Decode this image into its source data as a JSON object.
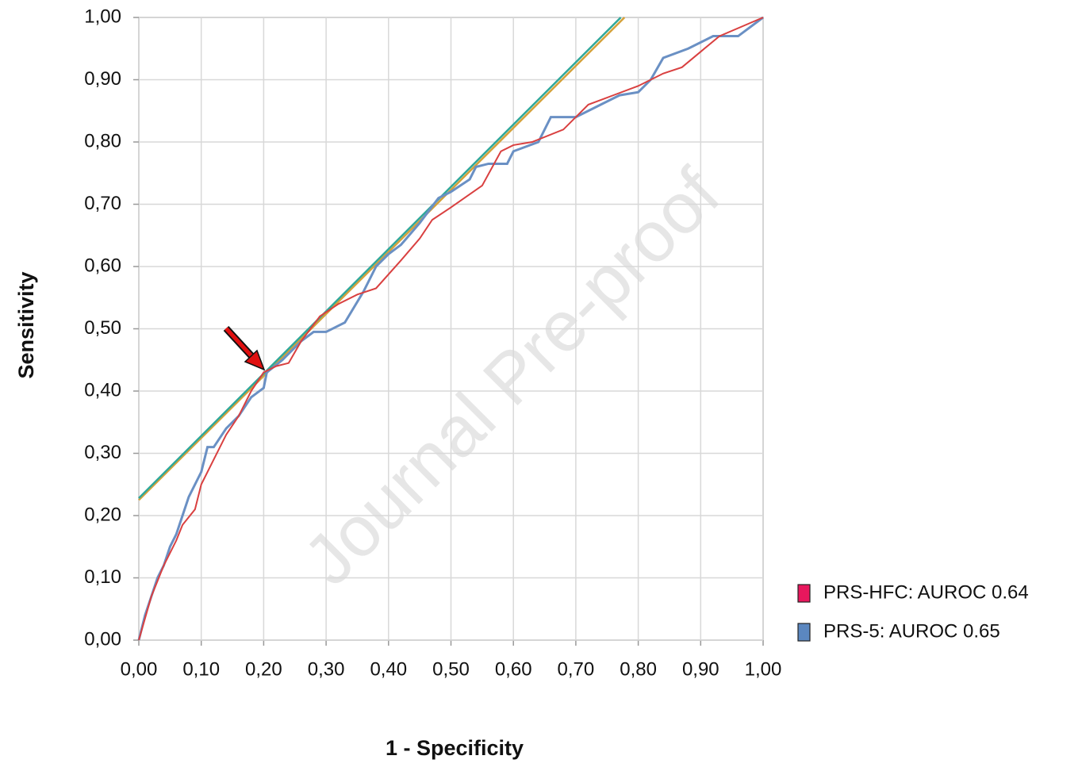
{
  "chart_data": {
    "type": "line",
    "xlabel": "1 - Specificity",
    "ylabel": "Sensitivity",
    "watermark": "Journal Pre-proof",
    "xlim": [
      0,
      1
    ],
    "ylim": [
      0,
      1
    ],
    "grid": true,
    "xticks": [
      {
        "value": 0,
        "label": "0,00"
      },
      {
        "value": 0.1,
        "label": "0,10"
      },
      {
        "value": 0.2,
        "label": "0,20"
      },
      {
        "value": 0.3,
        "label": "0,30"
      },
      {
        "value": 0.4,
        "label": "0,40"
      },
      {
        "value": 0.5,
        "label": "0,50"
      },
      {
        "value": 0.6,
        "label": "0,60"
      },
      {
        "value": 0.7,
        "label": "0,70"
      },
      {
        "value": 0.8,
        "label": "0,80"
      },
      {
        "value": 0.9,
        "label": "0,90"
      },
      {
        "value": 1,
        "label": "1,00"
      }
    ],
    "yticks": [
      {
        "value": 0,
        "label": "0,00"
      },
      {
        "value": 0.1,
        "label": "0,10"
      },
      {
        "value": 0.2,
        "label": "0,20"
      },
      {
        "value": 0.3,
        "label": "0,30"
      },
      {
        "value": 0.4,
        "label": "0,40"
      },
      {
        "value": 0.5,
        "label": "0,50"
      },
      {
        "value": 0.6,
        "label": "0,60"
      },
      {
        "value": 0.7,
        "label": "0,70"
      },
      {
        "value": 0.8,
        "label": "0,80"
      },
      {
        "value": 0.9,
        "label": "0,90"
      },
      {
        "value": 1,
        "label": "1,00"
      }
    ],
    "series": [
      {
        "name": "PRS-HFC: AUROC 0.64",
        "color": "#d94040",
        "legend_color": "#e8175d",
        "x": [
          0,
          0.01,
          0.02,
          0.04,
          0.06,
          0.07,
          0.09,
          0.1,
          0.12,
          0.14,
          0.16,
          0.18,
          0.2,
          0.22,
          0.24,
          0.26,
          0.29,
          0.32,
          0.35,
          0.38,
          0.42,
          0.45,
          0.47,
          0.5,
          0.55,
          0.58,
          0.6,
          0.63,
          0.68,
          0.72,
          0.76,
          0.8,
          0.84,
          0.87,
          0.9,
          0.93,
          1
        ],
        "values": [
          0,
          0.035,
          0.07,
          0.12,
          0.16,
          0.185,
          0.21,
          0.25,
          0.29,
          0.33,
          0.36,
          0.4,
          0.43,
          0.44,
          0.445,
          0.48,
          0.52,
          0.54,
          0.555,
          0.565,
          0.61,
          0.645,
          0.675,
          0.695,
          0.73,
          0.785,
          0.795,
          0.8,
          0.82,
          0.86,
          0.875,
          0.89,
          0.91,
          0.92,
          0.945,
          0.97,
          1
        ]
      },
      {
        "name": "PRS-5: AUROC 0.65",
        "color": "#6a90c4",
        "legend_color": "#5b87c0",
        "x": [
          0,
          0.005,
          0.01,
          0.02,
          0.03,
          0.04,
          0.05,
          0.06,
          0.07,
          0.08,
          0.1,
          0.11,
          0.12,
          0.14,
          0.16,
          0.18,
          0.2,
          0.205,
          0.23,
          0.26,
          0.28,
          0.3,
          0.33,
          0.36,
          0.38,
          0.4,
          0.42,
          0.45,
          0.48,
          0.5,
          0.53,
          0.54,
          0.56,
          0.59,
          0.6,
          0.64,
          0.66,
          0.7,
          0.74,
          0.77,
          0.8,
          0.82,
          0.84,
          0.88,
          0.92,
          0.96,
          1
        ],
        "values": [
          0,
          0.02,
          0.04,
          0.07,
          0.1,
          0.12,
          0.15,
          0.17,
          0.2,
          0.23,
          0.27,
          0.31,
          0.31,
          0.34,
          0.36,
          0.39,
          0.405,
          0.43,
          0.45,
          0.48,
          0.495,
          0.495,
          0.51,
          0.56,
          0.6,
          0.62,
          0.635,
          0.67,
          0.71,
          0.72,
          0.74,
          0.76,
          0.765,
          0.765,
          0.785,
          0.8,
          0.84,
          0.84,
          0.86,
          0.875,
          0.88,
          0.9,
          0.935,
          0.95,
          0.97,
          0.97,
          1
        ]
      }
    ],
    "reference_lines": [
      {
        "color": "#d4a13a",
        "x": [
          0,
          0.778
        ],
        "values": [
          0.225,
          1
        ]
      },
      {
        "color": "#2fa89a",
        "x": [
          0,
          0.772
        ],
        "values": [
          0.228,
          1
        ]
      }
    ]
  }
}
